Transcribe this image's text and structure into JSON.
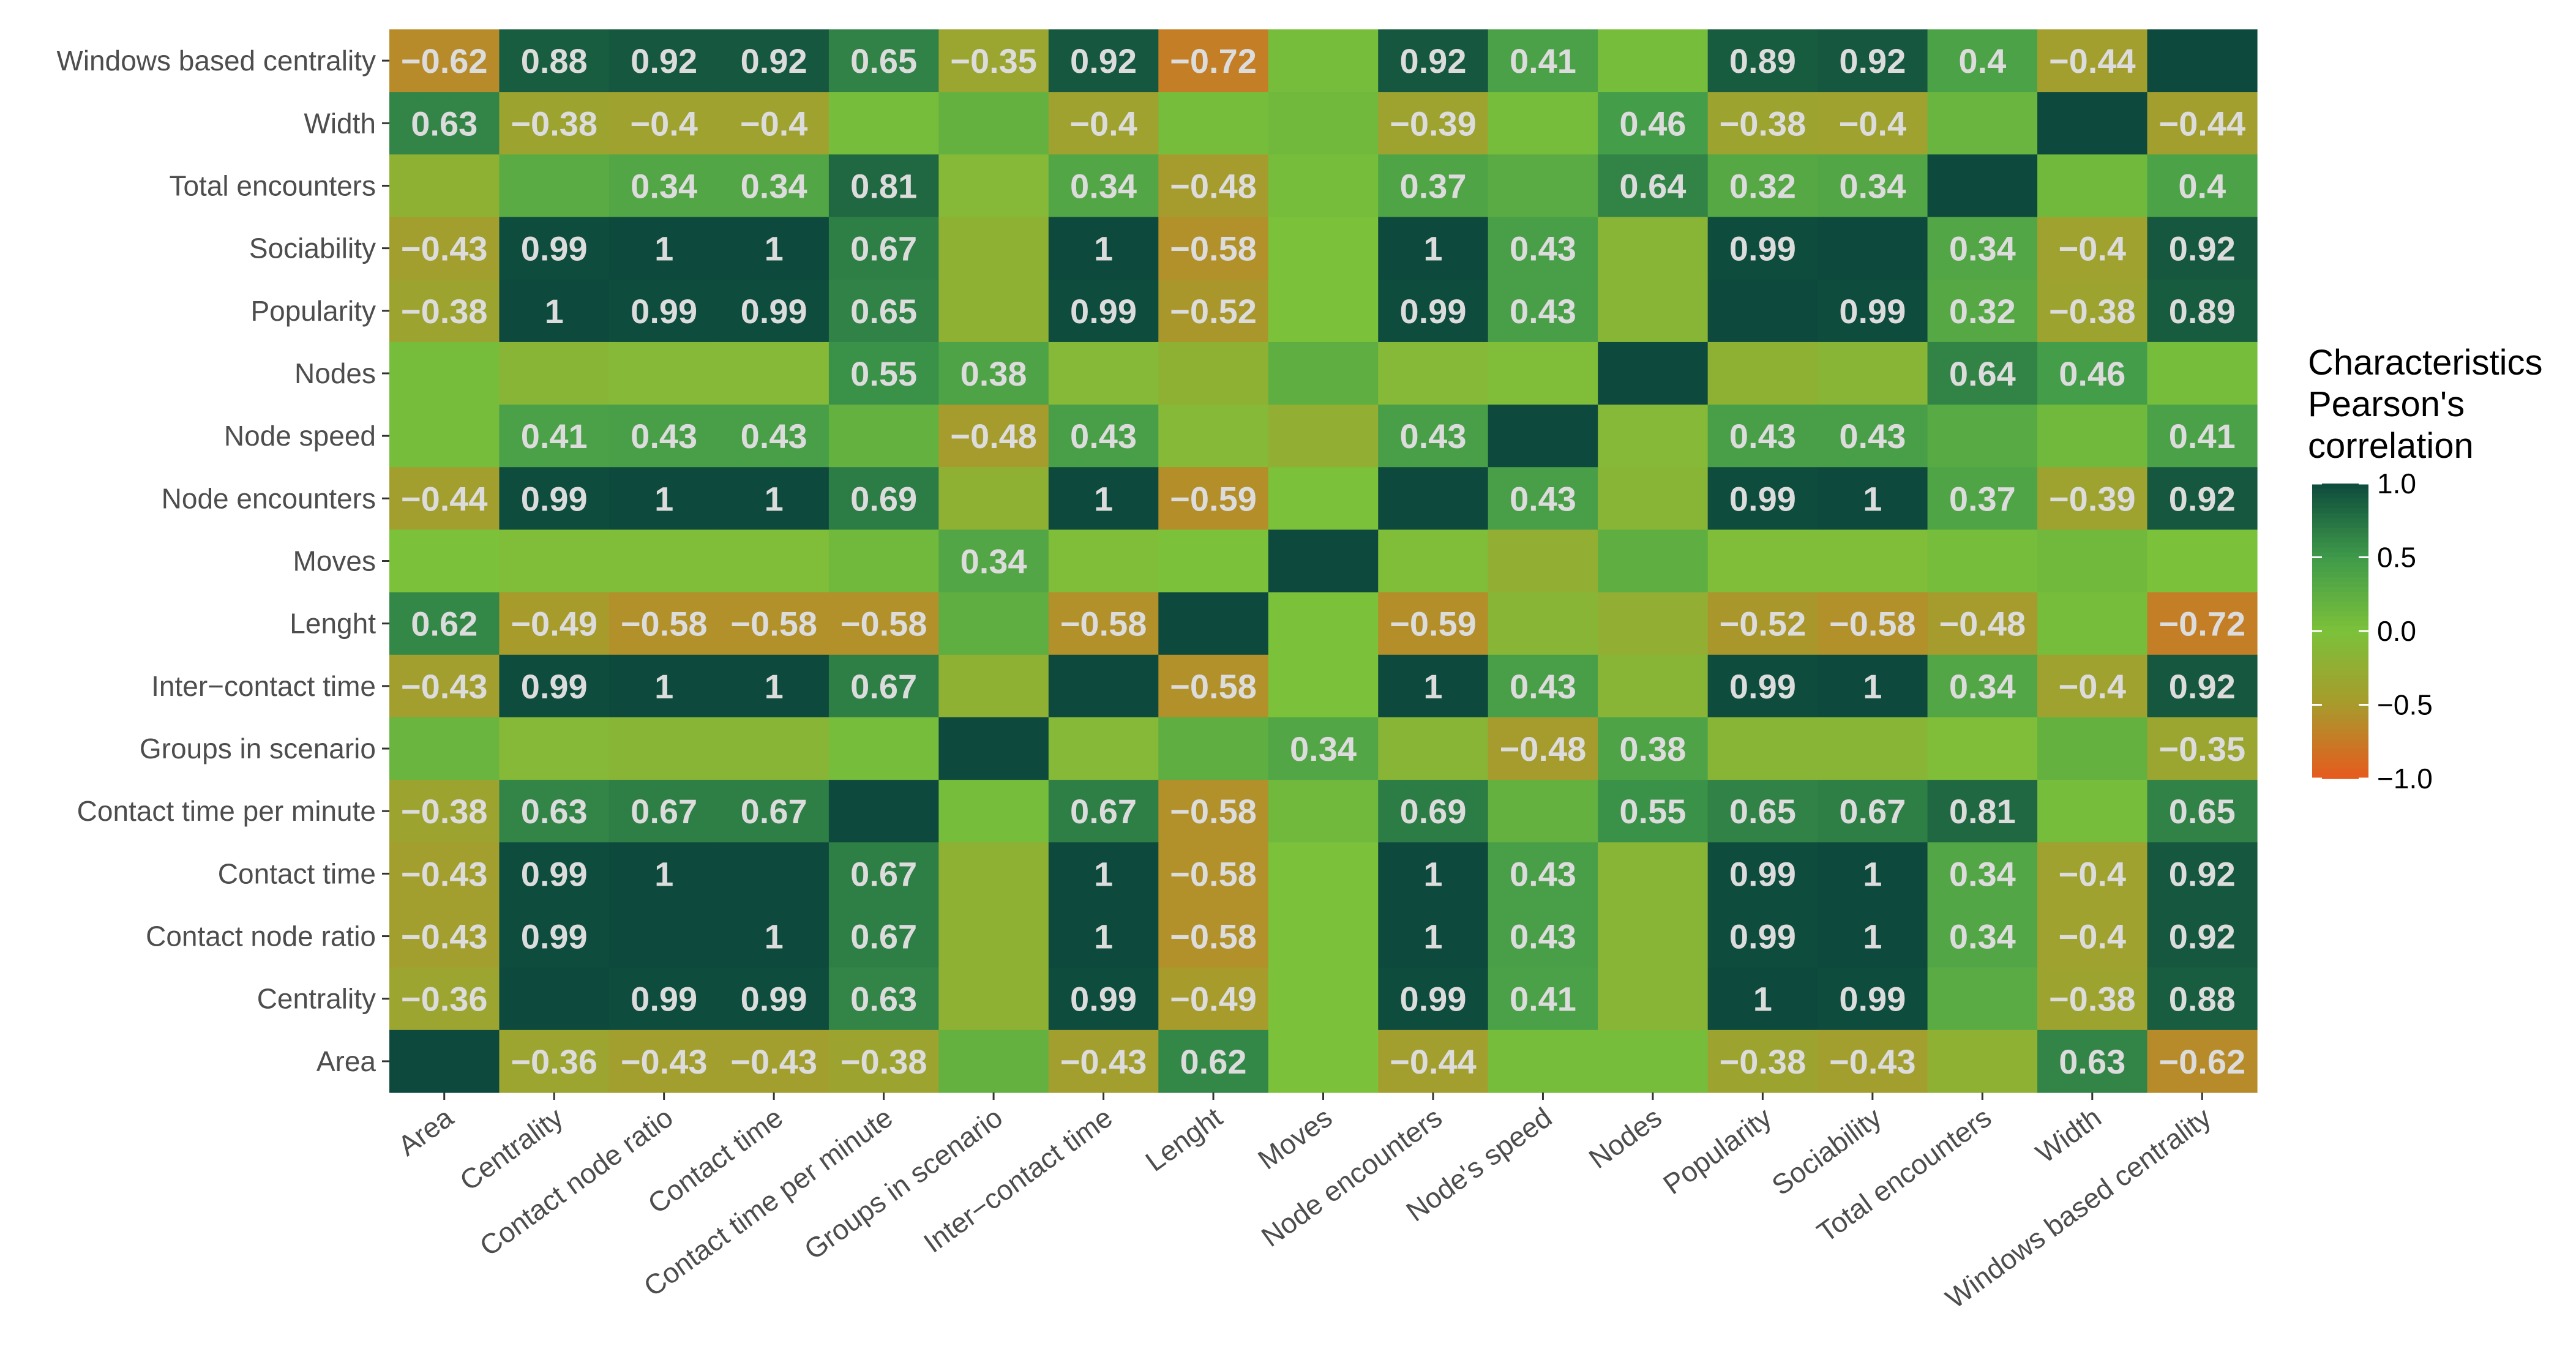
{
  "chart_data": {
    "type": "heatmap",
    "title": "",
    "xlabel": "",
    "ylabel": "",
    "x_categories": [
      "Area",
      "Centrality",
      "Contact node ratio",
      "Contact time",
      "Contact time per minute",
      "Groups in scenario",
      "Inter−contact time",
      "Lenght",
      "Moves",
      "Node encounters",
      "Node's speed",
      "Nodes",
      "Popularity",
      "Sociability",
      "Total encounters",
      "Width",
      "Windows based centrality"
    ],
    "y_categories": [
      "Windows based centrality",
      "Width",
      "Total encounters",
      "Sociability",
      "Popularity",
      "Nodes",
      "Node speed",
      "Node encounters",
      "Moves",
      "Lenght",
      "Inter−contact time",
      "Groups in scenario",
      "Contact time per minute",
      "Contact time",
      "Contact node ratio",
      "Centrality",
      "Area"
    ],
    "values": [
      [
        -0.62,
        0.88,
        0.92,
        0.92,
        0.65,
        -0.35,
        0.92,
        -0.72,
        0.05,
        0.92,
        0.41,
        0.05,
        0.89,
        0.92,
        0.4,
        -0.44,
        1.0
      ],
      [
        0.63,
        -0.38,
        -0.4,
        -0.4,
        0.05,
        0.2,
        -0.4,
        0.05,
        0.1,
        -0.39,
        0.05,
        0.46,
        -0.38,
        -0.4,
        0.15,
        1.0,
        -0.44
      ],
      [
        -0.2,
        0.28,
        0.34,
        0.34,
        0.81,
        -0.1,
        0.34,
        -0.48,
        0.05,
        0.37,
        0.28,
        0.64,
        0.32,
        0.34,
        1.0,
        0.1,
        0.4
      ],
      [
        -0.43,
        0.99,
        1.0,
        1.0,
        0.67,
        -0.2,
        1.0,
        -0.58,
        0.0,
        1.0,
        0.43,
        -0.15,
        0.99,
        1.0,
        0.34,
        -0.4,
        0.92
      ],
      [
        -0.38,
        1.0,
        0.99,
        0.99,
        0.65,
        -0.2,
        0.99,
        -0.52,
        0.0,
        0.99,
        0.43,
        -0.15,
        1.0,
        0.99,
        0.32,
        -0.38,
        0.89
      ],
      [
        0.05,
        -0.15,
        -0.1,
        -0.1,
        0.55,
        0.38,
        -0.1,
        -0.2,
        0.25,
        -0.1,
        -0.05,
        1.0,
        -0.2,
        -0.15,
        0.64,
        0.46,
        0.05
      ],
      [
        0.05,
        0.41,
        0.43,
        0.43,
        0.2,
        -0.48,
        0.43,
        -0.1,
        -0.25,
        0.43,
        1.0,
        -0.1,
        0.43,
        0.43,
        0.3,
        0.1,
        0.41
      ],
      [
        -0.44,
        0.99,
        1.0,
        1.0,
        0.69,
        -0.2,
        1.0,
        -0.59,
        0.0,
        1.0,
        0.43,
        -0.15,
        0.99,
        1.0,
        0.37,
        -0.39,
        0.92
      ],
      [
        0.0,
        -0.05,
        -0.05,
        -0.05,
        0.1,
        0.34,
        -0.05,
        0.0,
        1.0,
        -0.05,
        -0.25,
        0.25,
        -0.05,
        -0.05,
        0.05,
        0.1,
        0.0
      ],
      [
        0.62,
        -0.49,
        -0.58,
        -0.58,
        -0.58,
        0.25,
        -0.58,
        1.0,
        0.0,
        -0.59,
        -0.15,
        -0.25,
        -0.52,
        -0.58,
        -0.48,
        0.05,
        -0.72
      ],
      [
        -0.43,
        0.99,
        1.0,
        1.0,
        0.67,
        -0.2,
        1.0,
        -0.58,
        0.0,
        1.0,
        0.43,
        -0.15,
        0.99,
        1.0,
        0.34,
        -0.4,
        0.92
      ],
      [
        0.15,
        -0.1,
        -0.15,
        -0.15,
        0.05,
        1.0,
        -0.1,
        0.25,
        0.34,
        -0.15,
        -0.48,
        0.38,
        -0.15,
        -0.15,
        -0.05,
        0.2,
        -0.35
      ],
      [
        -0.38,
        0.63,
        0.67,
        0.67,
        1.0,
        0.05,
        0.67,
        -0.58,
        0.1,
        0.69,
        0.2,
        0.55,
        0.65,
        0.67,
        0.81,
        0.05,
        0.65
      ],
      [
        -0.43,
        0.99,
        1.0,
        1.0,
        0.67,
        -0.2,
        1.0,
        -0.58,
        0.0,
        1.0,
        0.43,
        -0.15,
        0.99,
        1.0,
        0.34,
        -0.4,
        0.92
      ],
      [
        -0.43,
        0.99,
        1.0,
        1.0,
        0.67,
        -0.2,
        1.0,
        -0.58,
        0.0,
        1.0,
        0.43,
        -0.15,
        0.99,
        1.0,
        0.34,
        -0.4,
        0.92
      ],
      [
        -0.36,
        1.0,
        0.99,
        0.99,
        0.63,
        -0.2,
        0.99,
        -0.49,
        0.0,
        0.99,
        0.41,
        -0.15,
        1.0,
        0.99,
        0.28,
        -0.38,
        0.88
      ],
      [
        1.0,
        -0.36,
        -0.43,
        -0.43,
        -0.38,
        0.2,
        -0.43,
        0.62,
        0.0,
        -0.44,
        0.05,
        0.05,
        -0.38,
        -0.43,
        -0.2,
        0.63,
        -0.62
      ]
    ],
    "labels": [
      [
        "−0.62",
        "0.88",
        "0.92",
        "0.92",
        "0.65",
        "−0.35",
        "0.92",
        "−0.72",
        "",
        "0.92",
        "0.41",
        "",
        "0.89",
        "0.92",
        "0.4",
        "−0.44",
        ""
      ],
      [
        "0.63",
        "−0.38",
        "−0.4",
        "−0.4",
        "",
        "",
        "−0.4",
        "",
        "",
        "−0.39",
        "",
        "0.46",
        "−0.38",
        "−0.4",
        "",
        "",
        "−0.44"
      ],
      [
        "",
        "",
        "0.34",
        "0.34",
        "0.81",
        "",
        "0.34",
        "−0.48",
        "",
        "0.37",
        "",
        "0.64",
        "0.32",
        "0.34",
        "",
        "",
        "0.4"
      ],
      [
        "−0.43",
        "0.99",
        "1",
        "1",
        "0.67",
        "",
        "1",
        "−0.58",
        "",
        "1",
        "0.43",
        "",
        "0.99",
        "",
        "0.34",
        "−0.4",
        "0.92"
      ],
      [
        "−0.38",
        "1",
        "0.99",
        "0.99",
        "0.65",
        "",
        "0.99",
        "−0.52",
        "",
        "0.99",
        "0.43",
        "",
        "",
        "0.99",
        "0.32",
        "−0.38",
        "0.89"
      ],
      [
        "",
        "",
        "",
        "",
        "0.55",
        "0.38",
        "",
        "",
        "",
        "",
        "",
        "",
        "",
        "",
        "0.64",
        "0.46",
        ""
      ],
      [
        "",
        "0.41",
        "0.43",
        "0.43",
        "",
        "−0.48",
        "0.43",
        "",
        "",
        "0.43",
        "",
        "",
        "0.43",
        "0.43",
        "",
        "",
        "0.41"
      ],
      [
        "−0.44",
        "0.99",
        "1",
        "1",
        "0.69",
        "",
        "1",
        "−0.59",
        "",
        "",
        "0.43",
        "",
        "0.99",
        "1",
        "0.37",
        "−0.39",
        "0.92"
      ],
      [
        "",
        "",
        "",
        "",
        "",
        "0.34",
        "",
        "",
        "",
        "",
        "",
        "",
        "",
        "",
        "",
        "",
        ""
      ],
      [
        "0.62",
        "−0.49",
        "−0.58",
        "−0.58",
        "−0.58",
        "",
        "−0.58",
        "",
        "",
        "−0.59",
        "",
        "",
        "−0.52",
        "−0.58",
        "−0.48",
        "",
        "−0.72"
      ],
      [
        "−0.43",
        "0.99",
        "1",
        "1",
        "0.67",
        "",
        "",
        "−0.58",
        "",
        "1",
        "0.43",
        "",
        "0.99",
        "1",
        "0.34",
        "−0.4",
        "0.92"
      ],
      [
        "",
        "",
        "",
        "",
        "",
        "",
        "",
        "",
        "0.34",
        "",
        "−0.48",
        "0.38",
        "",
        "",
        "",
        "",
        "−0.35"
      ],
      [
        "−0.38",
        "0.63",
        "0.67",
        "0.67",
        "",
        "",
        "0.67",
        "−0.58",
        "",
        "0.69",
        "",
        "0.55",
        "0.65",
        "0.67",
        "0.81",
        "",
        "0.65"
      ],
      [
        "−0.43",
        "0.99",
        "1",
        "",
        "0.67",
        "",
        "1",
        "−0.58",
        "",
        "1",
        "0.43",
        "",
        "0.99",
        "1",
        "0.34",
        "−0.4",
        "0.92"
      ],
      [
        "−0.43",
        "0.99",
        "",
        "1",
        "0.67",
        "",
        "1",
        "−0.58",
        "",
        "1",
        "0.43",
        "",
        "0.99",
        "1",
        "0.34",
        "−0.4",
        "0.92"
      ],
      [
        "−0.36",
        "",
        "0.99",
        "0.99",
        "0.63",
        "",
        "0.99",
        "−0.49",
        "",
        "0.99",
        "0.41",
        "",
        "1",
        "0.99",
        "",
        "−0.38",
        "0.88"
      ],
      [
        "",
        "−0.36",
        "−0.43",
        "−0.43",
        "−0.38",
        "",
        "−0.43",
        "0.62",
        "",
        "−0.44",
        "",
        "",
        "−0.38",
        "−0.43",
        "",
        "0.63",
        "−0.62"
      ]
    ],
    "legend": {
      "title_lines": [
        "Characteristics",
        "Pearson's",
        "correlation"
      ],
      "ticks": [
        "1.0",
        "0.5",
        "0.0",
        "−0.5",
        "−1.0"
      ],
      "tick_values": [
        1.0,
        0.5,
        0.0,
        -0.5,
        -1.0
      ],
      "range": [
        -1.0,
        1.0
      ],
      "placement": "right"
    },
    "colors": {
      "low": "#e65a1e",
      "mid_low": "#a89a2c",
      "mid": "#7cc13a",
      "mid_high": "#3f9a4a",
      "high": "#0d4a3d",
      "label_text": "#dcdcdc"
    }
  }
}
